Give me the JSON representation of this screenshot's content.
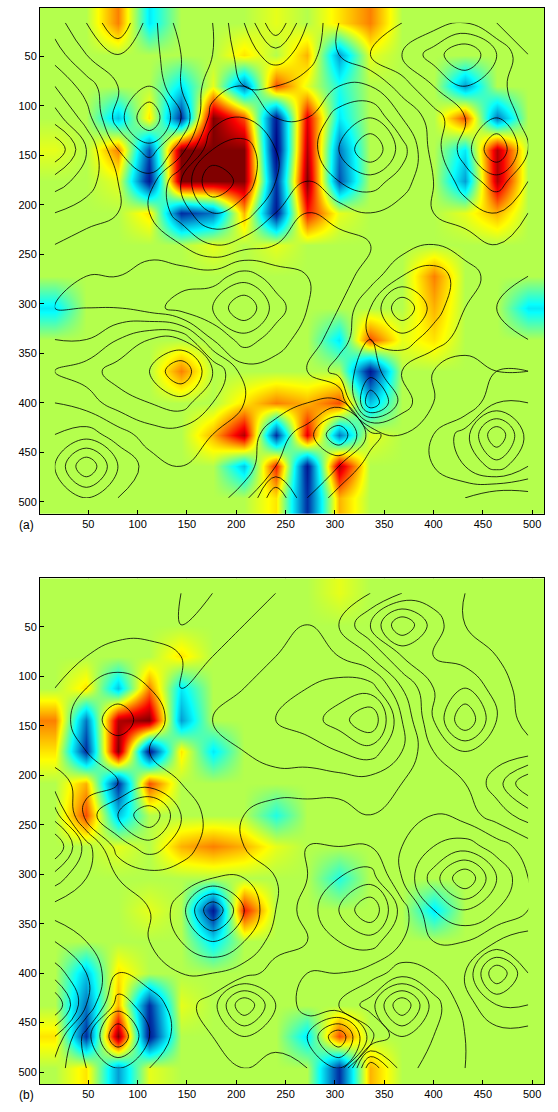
{
  "chart_data": [
    {
      "type": "heatmap",
      "label": "(a)",
      "color": "jet",
      "grid": true,
      "xlim": [
        1,
        512
      ],
      "ylim": [
        512,
        1
      ],
      "xticks": [
        50,
        100,
        150,
        200,
        250,
        300,
        350,
        400,
        450,
        500
      ],
      "yticks": [
        50,
        100,
        150,
        200,
        250,
        300,
        350,
        400,
        450,
        500
      ],
      "zlim": [
        -1,
        1
      ],
      "x": [
        16,
        48,
        80,
        112,
        144,
        176,
        208,
        240,
        272,
        304,
        336,
        368,
        400,
        432,
        464,
        496
      ],
      "y": [
        16,
        48,
        80,
        112,
        144,
        176,
        208,
        240,
        272,
        304,
        336,
        368,
        400,
        432,
        464,
        496
      ],
      "values": [
        [
          0.1,
          0.1,
          0.5,
          -0.3,
          0.1,
          0.1,
          0.1,
          0.2,
          0.1,
          0.3,
          0.5,
          0.1,
          0.1,
          0.1,
          0.1,
          0.1
        ],
        [
          0.1,
          0.1,
          0.1,
          0.1,
          0.1,
          0.1,
          0.3,
          0.1,
          0.4,
          -0.5,
          0.2,
          0.1,
          0.1,
          0.1,
          0.1,
          0.1
        ],
        [
          0.1,
          0.1,
          0.1,
          0.1,
          -0.3,
          0.2,
          -0.6,
          0.6,
          0.2,
          -0.2,
          0.1,
          0.1,
          0.1,
          -0.5,
          0.1,
          0.1
        ],
        [
          0.1,
          0.1,
          -0.4,
          0.3,
          -0.8,
          1.0,
          0.6,
          -0.9,
          0.8,
          -0.3,
          0.1,
          0.1,
          0.1,
          0.6,
          -0.6,
          0.1
        ],
        [
          0.2,
          0.1,
          0.5,
          -0.7,
          1.0,
          1.0,
          1.0,
          -1.0,
          0.9,
          -0.6,
          0.1,
          0.1,
          0.1,
          -0.3,
          0.9,
          0.1
        ],
        [
          0.1,
          0.1,
          0.2,
          -0.9,
          1.0,
          1.0,
          1.0,
          -0.8,
          1.0,
          -0.7,
          0.1,
          0.1,
          0.1,
          -0.5,
          0.9,
          0.1
        ],
        [
          0.1,
          0.1,
          0.1,
          0.3,
          -0.8,
          -0.6,
          0.4,
          -0.9,
          0.7,
          0.2,
          0.1,
          0.1,
          0.1,
          0.2,
          0.4,
          0.1
        ],
        [
          0.1,
          0.1,
          0.1,
          0.1,
          0.1,
          0.2,
          0.1,
          0.2,
          0.1,
          0.1,
          0.1,
          0.1,
          0.1,
          0.1,
          0.1,
          0.1
        ],
        [
          0.1,
          0.1,
          0.1,
          0.1,
          0.1,
          0.1,
          0.1,
          0.1,
          0.1,
          0.1,
          0.1,
          0.1,
          0.5,
          0.1,
          0.1,
          0.1
        ],
        [
          -0.3,
          0.1,
          0.1,
          0.1,
          0.1,
          0.1,
          0.1,
          0.1,
          0.1,
          0.1,
          0.1,
          0.1,
          0.4,
          0.1,
          0.1,
          -0.3
        ],
        [
          0.1,
          0.1,
          0.1,
          0.1,
          0.1,
          0.1,
          0.1,
          0.1,
          0.1,
          -0.3,
          0.6,
          0.2,
          0.3,
          0.1,
          0.1,
          0.1
        ],
        [
          0.1,
          0.1,
          0.1,
          0.1,
          0.5,
          0.1,
          0.1,
          0.1,
          0.1,
          0.1,
          -0.9,
          0.1,
          0.1,
          0.1,
          0.1,
          0.1
        ],
        [
          0.1,
          0.1,
          0.1,
          0.1,
          0.1,
          0.1,
          0.3,
          0.5,
          0.4,
          0.6,
          -0.4,
          0.1,
          0.1,
          0.1,
          0.1,
          0.1
        ],
        [
          0.1,
          0.1,
          0.1,
          0.1,
          0.1,
          0.4,
          0.9,
          -0.8,
          0.8,
          -0.6,
          0.2,
          0.1,
          0.1,
          0.1,
          0.1,
          0.1
        ],
        [
          0.1,
          0.1,
          0.1,
          0.1,
          0.1,
          0.1,
          -0.4,
          0.7,
          -0.9,
          0.9,
          0.1,
          0.1,
          0.1,
          0.1,
          0.1,
          0.1
        ],
        [
          0.1,
          0.1,
          0.1,
          0.1,
          0.1,
          0.1,
          0.1,
          0.3,
          -0.8,
          0.4,
          0.1,
          0.1,
          0.1,
          0.1,
          0.1,
          0.1
        ]
      ],
      "streamfunction": [
        [
          0.3,
          0.6,
          1.0,
          0.5,
          0.1,
          0,
          -0.4,
          -1.0,
          -0.4,
          0,
          0.1,
          0.2,
          0.3,
          0.4,
          0.2,
          0
        ],
        [
          0.1,
          0.4,
          0.6,
          0.5,
          0.2,
          0,
          -0.3,
          -0.5,
          -0.3,
          0,
          0.2,
          0.4,
          0.7,
          1.0,
          0.6,
          0.2
        ],
        [
          -0.2,
          0.1,
          0.4,
          0.6,
          0.2,
          -0.1,
          -0.2,
          -0.2,
          -0.1,
          -0.2,
          -0.2,
          0.1,
          0.4,
          0.6,
          0.5,
          0.2
        ],
        [
          -0.5,
          -0.1,
          0.5,
          1.0,
          0.4,
          -0.3,
          -0.4,
          -0.2,
          -0.2,
          -0.5,
          -0.6,
          -0.2,
          0.1,
          0.4,
          0.6,
          0.3
        ],
        [
          -1.0,
          -0.4,
          0.2,
          0.5,
          0.1,
          -0.6,
          -0.7,
          -0.4,
          -0.3,
          -0.6,
          -1.0,
          -0.5,
          0.1,
          0.5,
          1.0,
          0.4
        ],
        [
          -0.5,
          -0.3,
          0,
          0.1,
          -0.4,
          -1.0,
          -0.7,
          -0.4,
          -0.2,
          -0.4,
          -0.5,
          -0.3,
          0,
          0.3,
          0.5,
          0.2
        ],
        [
          -0.2,
          -0.1,
          0,
          0,
          -0.3,
          -0.6,
          -0.5,
          -0.2,
          0,
          -0.1,
          -0.2,
          -0.1,
          0,
          0.1,
          0.2,
          0
        ],
        [
          0,
          0.1,
          0.1,
          0.1,
          0,
          -0.2,
          -0.1,
          0,
          0.1,
          0.1,
          0,
          -0.1,
          -0.2,
          -0.1,
          0,
          -0.1
        ],
        [
          0.1,
          0.2,
          0.2,
          0.3,
          0.3,
          0.3,
          0.5,
          0.3,
          0.2,
          0.1,
          -0.1,
          -0.4,
          -0.5,
          -0.3,
          -0.1,
          -0.2
        ],
        [
          0.2,
          0.2,
          0.2,
          0.3,
          0.5,
          0.6,
          1.0,
          0.5,
          0.2,
          0,
          -0.4,
          -1.0,
          -0.5,
          -0.2,
          -0.2,
          -0.4
        ],
        [
          0,
          0,
          -0.2,
          -0.4,
          -0.4,
          0.2,
          0.5,
          0.3,
          0.1,
          -0.1,
          -0.4,
          -0.5,
          -0.3,
          -0.1,
          -0.1,
          -0.2
        ],
        [
          -0.2,
          -0.3,
          -0.5,
          -0.6,
          -1.0,
          -0.4,
          0.1,
          0.1,
          0,
          -0.3,
          -0.5,
          -0.2,
          0,
          0.1,
          0,
          0
        ],
        [
          0,
          -0.1,
          -0.3,
          -0.4,
          -0.5,
          -0.2,
          0,
          0.1,
          0.2,
          0.3,
          -1.0,
          -0.3,
          0,
          0.2,
          -0.2,
          -0.2
        ],
        [
          0.2,
          0.3,
          0.1,
          -0.1,
          -0.1,
          0,
          0.1,
          0.3,
          0.5,
          1.0,
          0.3,
          0,
          0,
          -0.3,
          -1.0,
          -0.3
        ],
        [
          0.4,
          1.0,
          0.4,
          0.1,
          0,
          0,
          0.1,
          0.4,
          0.4,
          0.4,
          0.1,
          0,
          0,
          -0.2,
          -0.5,
          -0.2
        ],
        [
          0.2,
          0.4,
          0.2,
          0.1,
          0,
          0.1,
          0.3,
          1.0,
          0.4,
          0.1,
          0,
          0,
          0.1,
          0.2,
          0.4,
          0.3
        ]
      ]
    },
    {
      "type": "heatmap",
      "label": "(b)",
      "color": "jet",
      "grid": true,
      "xlim": [
        1,
        512
      ],
      "ylim": [
        512,
        1
      ],
      "xticks": [
        50,
        100,
        150,
        200,
        250,
        300,
        350,
        400,
        450,
        500
      ],
      "yticks": [
        50,
        100,
        150,
        200,
        250,
        300,
        350,
        400,
        450,
        500
      ],
      "zlim": [
        -1,
        1
      ],
      "x": [
        16,
        48,
        80,
        112,
        144,
        176,
        208,
        240,
        272,
        304,
        336,
        368,
        400,
        432,
        464,
        496
      ],
      "y": [
        16,
        48,
        80,
        112,
        144,
        176,
        208,
        240,
        272,
        304,
        336,
        368,
        400,
        432,
        464,
        496
      ],
      "values": [
        [
          0.1,
          0.1,
          0.1,
          0.1,
          0.1,
          0.1,
          0.1,
          0.1,
          0.1,
          0.2,
          0.1,
          0.1,
          0.1,
          0.1,
          0.1,
          0.1
        ],
        [
          0.1,
          0.1,
          0.1,
          0.1,
          0.1,
          0.1,
          0.1,
          0.1,
          0.1,
          0.1,
          0.1,
          0.1,
          0.1,
          0.1,
          0.1,
          0.1
        ],
        [
          0.1,
          0.1,
          0.1,
          0.1,
          0.3,
          0.1,
          0.1,
          0.1,
          0.1,
          0.1,
          0.1,
          0.1,
          0.1,
          0.1,
          0.1,
          0.1
        ],
        [
          0.1,
          0.3,
          -0.4,
          0.5,
          -0.3,
          0.1,
          0.1,
          0.1,
          0.1,
          0.1,
          0.1,
          0.1,
          0.1,
          0.1,
          0.1,
          0.1
        ],
        [
          0.5,
          -0.6,
          0.9,
          1.0,
          -0.5,
          0.1,
          0.1,
          0.1,
          0.1,
          0.1,
          0.1,
          0.1,
          0.1,
          0.1,
          0.1,
          0.1
        ],
        [
          0.3,
          -0.8,
          1.0,
          -0.9,
          0.3,
          -0.3,
          0.1,
          0.1,
          0.1,
          0.1,
          0.1,
          0.1,
          0.1,
          0.1,
          0.1,
          0.1
        ],
        [
          0.1,
          0.4,
          -0.8,
          0.6,
          0.1,
          0.1,
          0.1,
          0.1,
          0.1,
          0.1,
          0.1,
          0.1,
          0.1,
          0.1,
          0.1,
          0.1
        ],
        [
          0.1,
          0.6,
          -0.4,
          0.1,
          0.1,
          0.1,
          0.1,
          -0.2,
          0.1,
          0.1,
          0.1,
          0.1,
          0.1,
          0.1,
          0.1,
          0.1
        ],
        [
          0.1,
          0.1,
          0.2,
          0.1,
          0.4,
          0.5,
          0.4,
          0.2,
          0.1,
          0.1,
          0.1,
          0.1,
          0.1,
          0.1,
          0.1,
          0.1
        ],
        [
          0.1,
          0.1,
          0.1,
          0.1,
          0.1,
          0.1,
          0.1,
          0.1,
          0.1,
          -0.2,
          0.1,
          0.1,
          0.1,
          0.1,
          0.1,
          0.1
        ],
        [
          0.1,
          0.1,
          0.1,
          0.2,
          0.1,
          -0.9,
          0.7,
          0.1,
          0.1,
          0.1,
          0.1,
          0.1,
          -0.3,
          0.1,
          0.1,
          0.1
        ],
        [
          0.1,
          0.1,
          0.1,
          0.1,
          0.1,
          -0.3,
          0.1,
          0.1,
          0.1,
          0.1,
          0.1,
          0.1,
          0.1,
          0.1,
          0.1,
          0.1
        ],
        [
          0.1,
          -0.4,
          0.3,
          0.1,
          0.1,
          0.1,
          0.1,
          0.1,
          0.1,
          0.1,
          0.1,
          0.1,
          0.1,
          0.1,
          0.1,
          0.1
        ],
        [
          0.1,
          -0.6,
          0.4,
          -0.8,
          0.2,
          0.1,
          0.1,
          0.1,
          0.1,
          0.1,
          0.1,
          0.1,
          0.1,
          0.1,
          0.1,
          0.1
        ],
        [
          0.3,
          -0.8,
          1.0,
          -0.9,
          0.1,
          0.1,
          0.1,
          0.1,
          -0.3,
          0.6,
          0.1,
          0.1,
          0.1,
          0.1,
          0.1,
          0.1
        ],
        [
          0.1,
          0.3,
          -0.5,
          0.2,
          0.1,
          0.1,
          0.1,
          0.1,
          0.1,
          -0.8,
          0.4,
          0.1,
          0.1,
          0.1,
          0.1,
          0.1
        ]
      ],
      "streamfunction": [
        [
          0,
          0.1,
          0.1,
          0.1,
          0.2,
          0.2,
          0.1,
          0,
          -0.1,
          -0.1,
          0,
          0.2,
          0.3,
          0.2,
          0.1,
          0
        ],
        [
          0.1,
          0.1,
          0.1,
          0.1,
          0.2,
          0.1,
          0,
          -0.1,
          -0.2,
          0,
          0.4,
          1.0,
          0.5,
          0.2,
          0.1,
          0
        ],
        [
          0.1,
          0,
          -0.1,
          -0.1,
          0,
          0,
          -0.1,
          -0.2,
          -0.3,
          -0.2,
          0,
          0.4,
          0.4,
          0.3,
          0.2,
          0.1
        ],
        [
          0,
          -0.2,
          -0.3,
          -0.2,
          0,
          -0.1,
          -0.2,
          -0.3,
          -0.4,
          -0.5,
          -0.5,
          0,
          0.4,
          0.6,
          0.3,
          0.1
        ],
        [
          -0.1,
          -0.3,
          -0.5,
          -0.3,
          -0.1,
          -0.2,
          -0.3,
          -0.4,
          -0.5,
          -0.7,
          -1.0,
          -0.2,
          0.4,
          1.0,
          0.4,
          0.1
        ],
        [
          -0.1,
          -0.2,
          -0.3,
          -0.2,
          -0.1,
          -0.1,
          -0.2,
          -0.3,
          -0.3,
          -0.4,
          -0.5,
          -0.2,
          0.2,
          0.4,
          0.3,
          0.3
        ],
        [
          0.1,
          -0.1,
          -0.2,
          -0.3,
          -0.2,
          -0.1,
          -0.1,
          -0.1,
          -0.1,
          -0.1,
          -0.1,
          0,
          0.1,
          0.2,
          0.5,
          1.0
        ],
        [
          0.5,
          -0.3,
          -0.6,
          -1.0,
          -0.4,
          -0.1,
          0,
          0.1,
          0.1,
          0.1,
          0,
          0,
          0,
          0.1,
          0.3,
          0.5
        ],
        [
          1.0,
          0.3,
          -0.3,
          -0.5,
          -0.3,
          -0.1,
          0,
          0.1,
          0.2,
          0.2,
          0.2,
          0,
          -0.2,
          -0.3,
          -0.1,
          0.1
        ],
        [
          0.5,
          0.2,
          0,
          -0.1,
          -0.1,
          -0.2,
          -0.2,
          0,
          0.2,
          0.4,
          0.5,
          0,
          -0.5,
          -1.0,
          -0.4,
          0
        ],
        [
          0.1,
          0.1,
          0.1,
          0,
          -0.3,
          -1.0,
          -0.4,
          0,
          0.3,
          0.6,
          1.0,
          0.3,
          -0.2,
          -0.4,
          -0.2,
          0
        ],
        [
          -0.2,
          0,
          0.1,
          0,
          -0.2,
          -0.4,
          -0.2,
          0.1,
          0.2,
          0.4,
          0.5,
          0.2,
          0,
          0,
          0.2,
          0.3
        ],
        [
          -0.5,
          -0.2,
          0.2,
          0.1,
          0,
          0,
          0.1,
          0.3,
          0.2,
          0.2,
          0.1,
          -0.1,
          0,
          0.2,
          1.0,
          0.4
        ],
        [
          -1.0,
          -0.2,
          0.5,
          0.3,
          0.1,
          0.3,
          1.0,
          0.4,
          0.1,
          0,
          -0.3,
          -1.0,
          -0.3,
          0.1,
          0.4,
          0.4
        ],
        [
          -0.4,
          0.3,
          1.0,
          0.4,
          0.1,
          0.2,
          0.4,
          0.3,
          0.4,
          1.0,
          0.1,
          -0.4,
          -0.2,
          0,
          0.1,
          0.1
        ],
        [
          -0.1,
          0.2,
          0.4,
          0.2,
          0,
          0.1,
          0.2,
          0.1,
          0.2,
          0.4,
          -1.0,
          -0.3,
          -0.1,
          0,
          0,
          0
        ]
      ]
    }
  ]
}
